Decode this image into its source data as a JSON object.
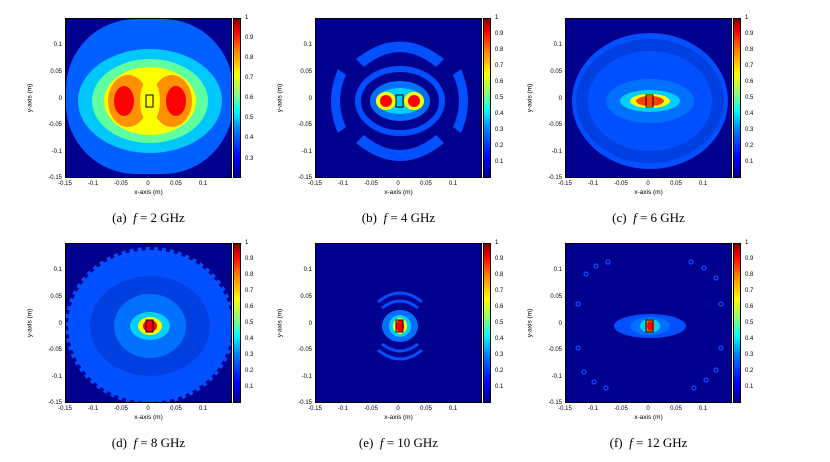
{
  "axes": {
    "x_label": "x-axis (m)",
    "y_label": "y-axis (m)",
    "x_ticks": [
      "-0.15",
      "-0.1",
      "-0.05",
      "0",
      "0.05",
      "0.1"
    ],
    "y_ticks": [
      "0.1",
      "0.05",
      "0",
      "-0.05",
      "-0.1",
      "-0.15"
    ]
  },
  "colorbars": {
    "full": [
      "1",
      "0.9",
      "0.8",
      "0.7",
      "0.6",
      "0.5",
      "0.4",
      "0.3",
      "0.2",
      "0.1"
    ],
    "ghz2": [
      "1",
      "0.9",
      "0.8",
      "0.7",
      "0.6",
      "0.5",
      "0.4",
      "0.3"
    ]
  },
  "panels": [
    {
      "id": "a",
      "tag": "(a)",
      "symbol": "f",
      "eq": "= 2 GHz",
      "colorbar": "ghz2"
    },
    {
      "id": "b",
      "tag": "(b)",
      "symbol": "f",
      "eq": "= 4 GHz",
      "colorbar": "full"
    },
    {
      "id": "c",
      "tag": "(c)",
      "symbol": "f",
      "eq": "= 6 GHz",
      "colorbar": "full"
    },
    {
      "id": "d",
      "tag": "(d)",
      "symbol": "f",
      "eq": "= 8 GHz",
      "colorbar": "full"
    },
    {
      "id": "e",
      "tag": "(e)",
      "symbol": "f",
      "eq": "= 10 GHz",
      "colorbar": "full"
    },
    {
      "id": "f",
      "tag": "(f)",
      "symbol": "f",
      "eq": "= 12 GHz",
      "colorbar": "full"
    }
  ],
  "colors": {
    "background": "#00008f",
    "level1": "#0000ff",
    "level2": "#0070ff",
    "level3": "#00d0ff",
    "level4": "#80ff80",
    "level5": "#ffff00",
    "level6": "#ff8000",
    "level7": "#ff0000",
    "level8": "#c00000"
  }
}
